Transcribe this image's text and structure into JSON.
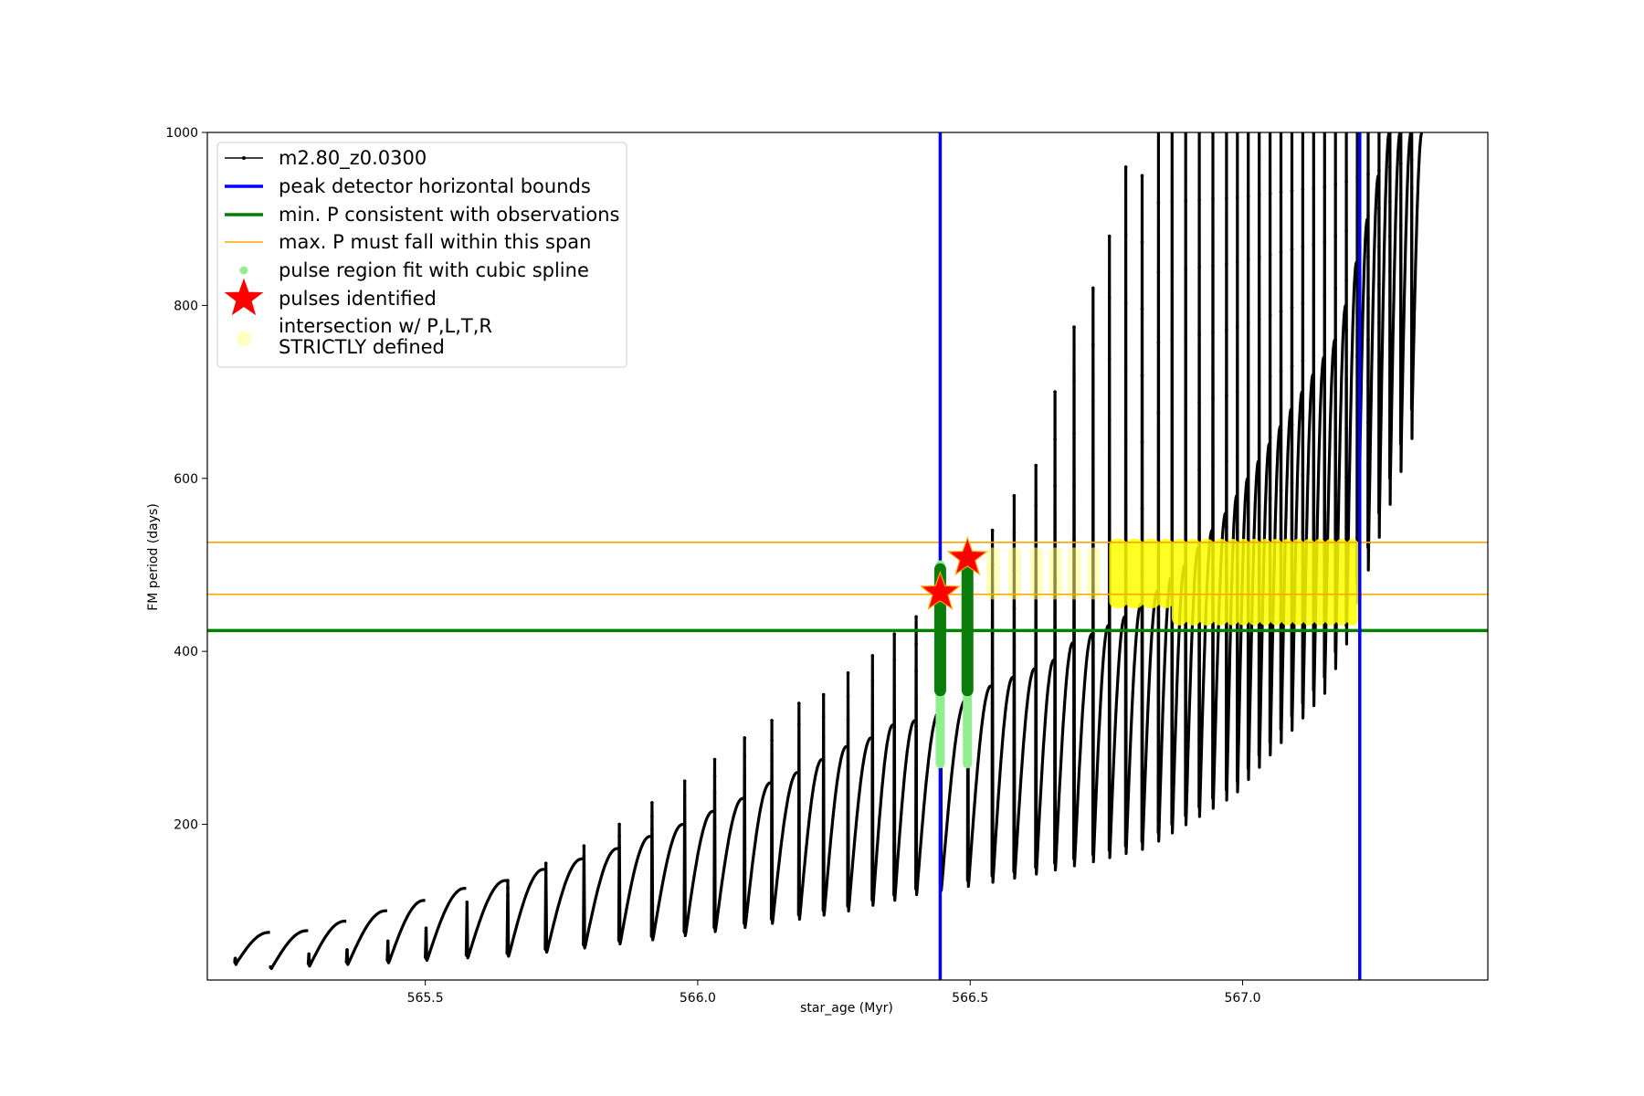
{
  "chart_data": {
    "type": "line",
    "xlabel": "star_age (Myr)",
    "ylabel": "FM period (days)",
    "xlim": [
      565.1,
      567.45
    ],
    "ylim": [
      20,
      1000
    ],
    "xticks": [
      565.5,
      566.0,
      566.5,
      567.0
    ],
    "xtick_labels": [
      "565.5",
      "566.0",
      "566.5",
      "567.0"
    ],
    "yticks": [
      200,
      400,
      600,
      800,
      1000
    ],
    "ytick_labels": [
      "200",
      "400",
      "600",
      "800",
      "1000"
    ],
    "grid": false,
    "legend_position": "top-left",
    "model": {
      "name": "m2.80_z0.0300",
      "color": "#000000",
      "age_start": 565.15,
      "age_end": 567.33,
      "pulse_ages": [
        565.15,
        565.215,
        565.285,
        565.355,
        565.43,
        565.5,
        565.575,
        565.65,
        565.72,
        565.79,
        565.855,
        565.915,
        565.975,
        566.03,
        566.085,
        566.135,
        566.185,
        566.23,
        566.275,
        566.32,
        566.36,
        566.4,
        566.445,
        566.495,
        566.54,
        566.58,
        566.62,
        566.655,
        566.69,
        566.725,
        566.755,
        566.785,
        566.815,
        566.845,
        566.87,
        566.895,
        566.92,
        566.945,
        566.97,
        566.99,
        567.01,
        567.03,
        567.05,
        567.07,
        567.09,
        567.11,
        567.13,
        567.15,
        567.17,
        567.19,
        567.21,
        567.23,
        567.25,
        567.27,
        567.29,
        567.31
      ],
      "pulse_peaks": [
        75,
        77,
        88,
        100,
        112,
        126,
        135,
        148,
        160,
        172,
        186,
        200,
        215,
        230,
        248,
        260,
        275,
        290,
        300,
        315,
        320,
        330,
        345,
        360,
        370,
        380,
        390,
        410,
        420,
        430,
        440,
        455,
        470,
        485,
        500,
        520,
        540,
        560,
        580,
        600,
        620,
        640,
        660,
        680,
        700,
        720,
        740,
        760,
        800,
        850,
        900,
        950,
        1000,
        1000,
        1000,
        1000
      ],
      "pulse_minima": [
        40,
        35,
        38,
        40,
        42,
        45,
        48,
        50,
        55,
        60,
        65,
        70,
        75,
        80,
        85,
        90,
        95,
        100,
        105,
        112,
        118,
        125,
        130,
        135,
        140,
        145,
        150,
        155,
        160,
        165,
        170,
        175,
        180,
        190,
        200,
        210,
        220,
        230,
        240,
        250,
        265,
        280,
        295,
        310,
        325,
        340,
        355,
        370,
        400,
        430,
        480,
        520,
        560,
        600,
        640,
        680
      ],
      "spike_peaks": [
        45,
        35,
        50,
        55,
        65,
        80,
        110,
        135,
        155,
        175,
        200,
        225,
        250,
        275,
        300,
        320,
        340,
        350,
        375,
        395,
        420,
        440,
        450,
        480,
        540,
        580,
        615,
        700,
        775,
        820,
        880,
        960,
        950,
        1000,
        1000,
        1000,
        1000,
        1000,
        1000,
        1000,
        1000,
        1000,
        1000,
        1000,
        1000,
        1000,
        1000,
        1000,
        1000,
        1000,
        1000,
        1000,
        1000,
        1000,
        1000,
        1000
      ]
    },
    "peak_detector_bounds": {
      "x": [
        566.445,
        567.215
      ],
      "color": "#0000ff"
    },
    "min_period_consistent": {
      "y": 424,
      "color": "#008000"
    },
    "max_period_span": {
      "y": [
        466,
        526
      ],
      "color": "#ffa500"
    },
    "pulse_region_fit": [
      {
        "age": 566.445,
        "y_low": 270,
        "y_high": 500,
        "dark_low": 355,
        "dark_high": 495
      },
      {
        "age": 566.495,
        "y_low": 270,
        "y_high": 500,
        "dark_low": 355,
        "dark_high": 500
      }
    ],
    "pulses_identified": [
      {
        "age": 566.445,
        "period": 468
      },
      {
        "age": 566.495,
        "period": 508
      }
    ],
    "intersection_region": {
      "x_start": 566.75,
      "x_end": 567.2,
      "y_low": 430,
      "y_high": 530,
      "color": "#ffff00"
    },
    "legend": [
      {
        "label": "m2.80_z0.0300",
        "style": "line-marker",
        "color": "#000000"
      },
      {
        "label": "peak detector horizontal bounds",
        "style": "line-thick",
        "color": "#0000ff"
      },
      {
        "label": "min. P consistent with observations",
        "style": "line-thick",
        "color": "#008000"
      },
      {
        "label": "max. P must fall within this span",
        "style": "line-thin",
        "color": "#ffa500"
      },
      {
        "label": "pulse region fit with cubic spline",
        "style": "dot",
        "color": "#90ee90"
      },
      {
        "label": "pulses identified",
        "style": "star",
        "color": "#ff0000"
      },
      {
        "label": "intersection w/ P,L,T,R",
        "label2": "STRICTLY defined",
        "style": "dot-large",
        "color": "#ffffc0"
      }
    ]
  }
}
